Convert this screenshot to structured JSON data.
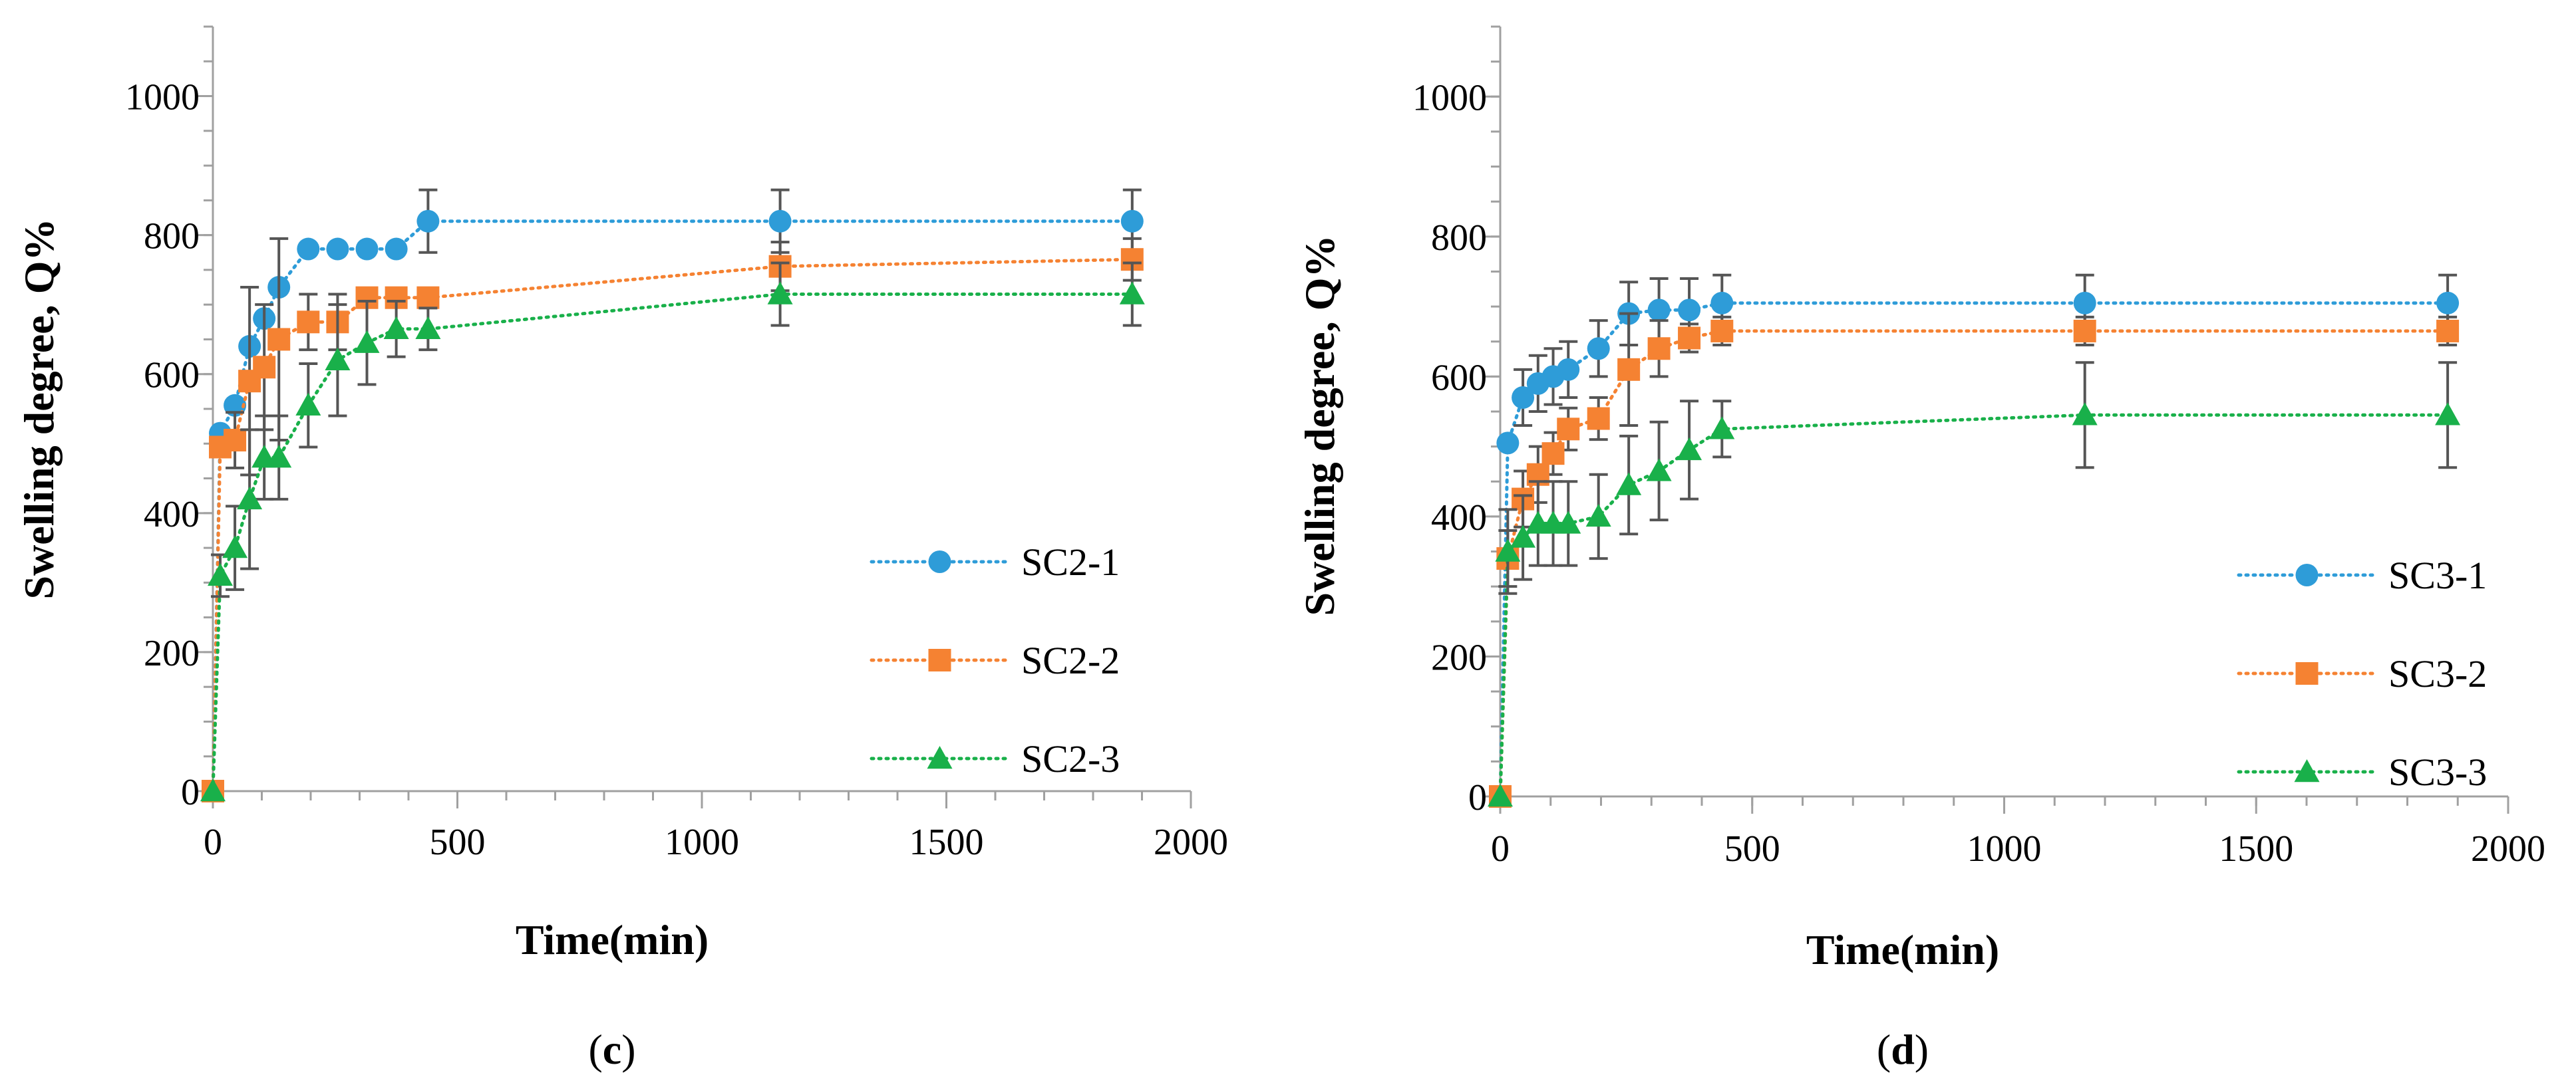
{
  "chart_data": [
    {
      "type": "line",
      "panel_label": "c",
      "xlabel": "Time(min)",
      "ylabel": "Swelling degree, Q%",
      "xlim": [
        0,
        2000
      ],
      "ylim": [
        0,
        1100
      ],
      "x_ticks": [
        0,
        500,
        1000,
        1500,
        2000
      ],
      "y_ticks": [
        0,
        200,
        400,
        600,
        800,
        1000
      ],
      "legend_position": "right",
      "series": [
        {
          "name": "SC2-1",
          "color": "#2e9cd8",
          "marker": "circle",
          "x": [
            0,
            15,
            45,
            75,
            105,
            135,
            195,
            255,
            315,
            375,
            440,
            1160,
            1880
          ],
          "y": [
            0,
            515,
            555,
            640,
            680,
            725,
            780,
            780,
            780,
            780,
            820,
            820,
            820
          ],
          "error": [
            0,
            0,
            0,
            0,
            0,
            0,
            0,
            0,
            0,
            0,
            45,
            45,
            45
          ]
        },
        {
          "name": "SC2-2",
          "color": "#f58232",
          "marker": "square",
          "x": [
            0,
            15,
            45,
            75,
            105,
            135,
            195,
            255,
            315,
            375,
            440,
            1160,
            1880
          ],
          "y": [
            0,
            495,
            505,
            590,
            610,
            650,
            675,
            675,
            710,
            710,
            710,
            755,
            765
          ],
          "error": [
            0,
            0,
            40,
            135,
            90,
            145,
            40,
            40,
            0,
            0,
            0,
            35,
            30
          ]
        },
        {
          "name": "SC2-3",
          "color": "#19b04a",
          "marker": "triangle",
          "x": [
            0,
            15,
            45,
            75,
            105,
            135,
            195,
            255,
            315,
            375,
            440,
            1160,
            1880
          ],
          "y": [
            0,
            310,
            350,
            420,
            480,
            480,
            555,
            620,
            645,
            665,
            665,
            715,
            715
          ],
          "error": [
            0,
            30,
            60,
            100,
            60,
            60,
            60,
            80,
            60,
            40,
            30,
            45,
            45
          ]
        }
      ]
    },
    {
      "type": "line",
      "panel_label": "d",
      "xlabel": "Time(min)",
      "ylabel": "Swelling degree, Q%",
      "xlim": [
        0,
        2000
      ],
      "ylim": [
        0,
        1100
      ],
      "x_ticks": [
        0,
        500,
        1000,
        1500,
        2000
      ],
      "y_ticks": [
        0,
        200,
        400,
        600,
        800,
        1000
      ],
      "legend_position": "right",
      "series": [
        {
          "name": "SC3-1",
          "color": "#2e9cd8",
          "marker": "circle",
          "x": [
            0,
            15,
            45,
            75,
            105,
            135,
            195,
            255,
            315,
            375,
            440,
            1160,
            1880
          ],
          "y": [
            0,
            505,
            570,
            590,
            600,
            610,
            640,
            690,
            695,
            695,
            705,
            705,
            705
          ],
          "error": [
            0,
            0,
            40,
            40,
            40,
            40,
            40,
            45,
            45,
            45,
            40,
            40,
            40
          ]
        },
        {
          "name": "SC3-2",
          "color": "#f58232",
          "marker": "square",
          "x": [
            0,
            15,
            45,
            75,
            105,
            135,
            195,
            255,
            315,
            375,
            440,
            1160,
            1880
          ],
          "y": [
            0,
            340,
            425,
            460,
            490,
            525,
            540,
            610,
            640,
            655,
            665,
            665,
            665
          ],
          "error": [
            0,
            40,
            40,
            40,
            30,
            30,
            30,
            80,
            40,
            20,
            20,
            20,
            20
          ]
        },
        {
          "name": "SC3-3",
          "color": "#19b04a",
          "marker": "triangle",
          "x": [
            0,
            15,
            45,
            75,
            105,
            135,
            195,
            255,
            315,
            375,
            440,
            1160,
            1880
          ],
          "y": [
            0,
            350,
            370,
            390,
            390,
            390,
            400,
            445,
            465,
            495,
            525,
            545,
            545
          ],
          "error": [
            0,
            60,
            60,
            60,
            60,
            60,
            60,
            70,
            70,
            70,
            40,
            75,
            75
          ]
        }
      ]
    }
  ]
}
